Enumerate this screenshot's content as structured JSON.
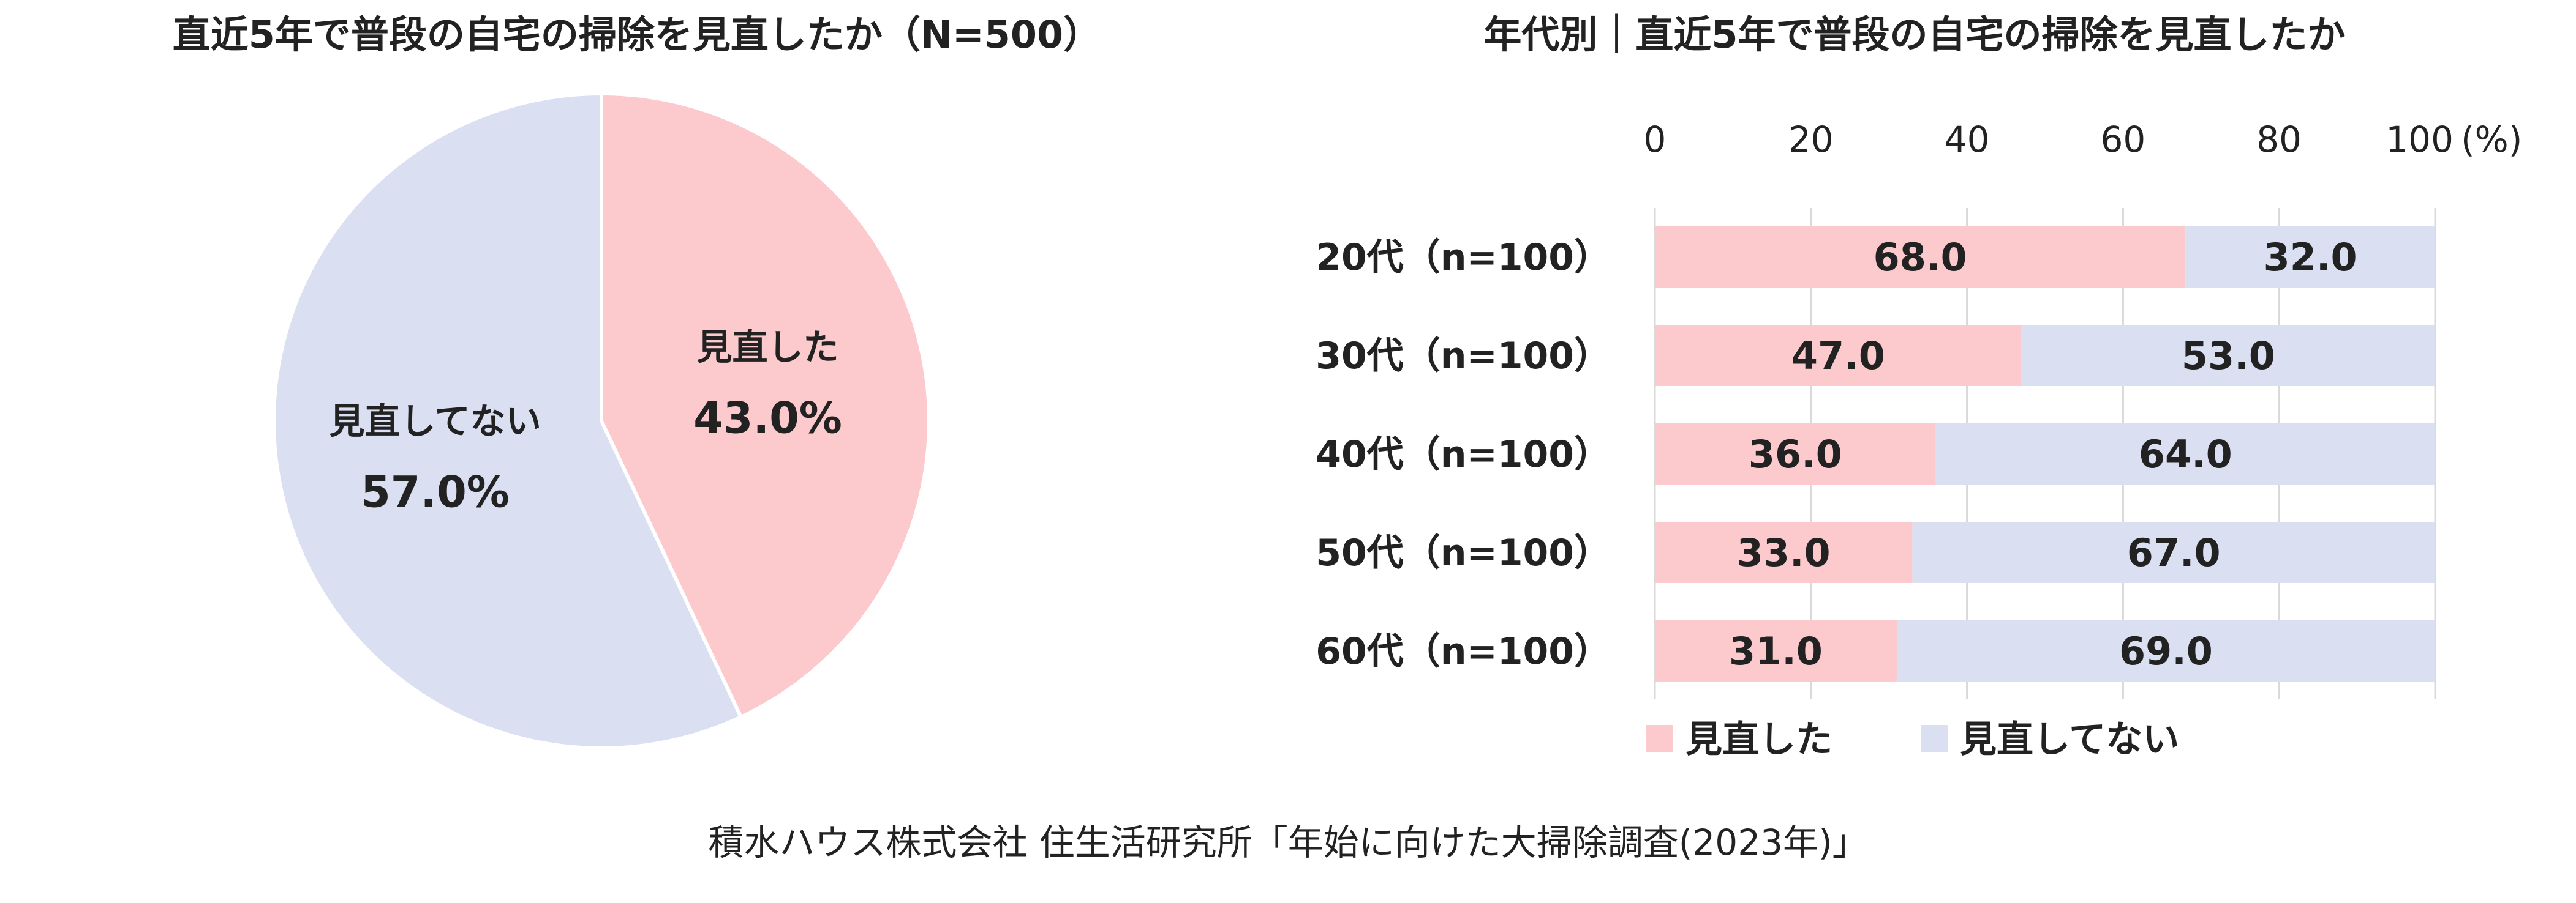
{
  "colors": {
    "revised": "#FCCACC",
    "not_revised": "#DADFF2",
    "grid": "#D9D9D9",
    "text": "#222222"
  },
  "source": "積水ハウス株式会社 住生活研究所「年始に向けた大掃除調査(2023年)」",
  "chart_data": [
    {
      "type": "pie",
      "title": "直近5年で普段の自宅の掃除を見直したか（N=500）",
      "slices": [
        {
          "label": "見直した",
          "value": 43.0,
          "value_label": "43.0%",
          "color": "#FCCACC"
        },
        {
          "label": "見直してない",
          "value": 57.0,
          "value_label": "57.0%",
          "color": "#DADFF2"
        }
      ],
      "start": "12 o'clock, clockwise"
    },
    {
      "type": "bar",
      "orientation": "horizontal",
      "stacked": true,
      "title": "年代別｜直近5年で普段の自宅の掃除を見直したか",
      "categories": [
        "20代（n=100）",
        "30代（n=100）",
        "40代（n=100）",
        "50代（n=100）",
        "60代（n=100）"
      ],
      "series": [
        {
          "name": "見直した",
          "values": [
            68.0,
            47.0,
            36.0,
            33.0,
            31.0
          ],
          "labels": [
            "68.0",
            "47.0",
            "36.0",
            "33.0",
            "31.0"
          ],
          "color": "#FCCACC"
        },
        {
          "name": "見直してない",
          "values": [
            32.0,
            53.0,
            64.0,
            67.0,
            69.0
          ],
          "labels": [
            "32.0",
            "53.0",
            "64.0",
            "67.0",
            "69.0"
          ],
          "color": "#DADFF2"
        }
      ],
      "xlim": [
        0,
        100
      ],
      "xticks": [
        "0",
        "20",
        "40",
        "60",
        "80",
        "100"
      ],
      "x_unit": "(%)",
      "grid": true,
      "legend": "bottom"
    }
  ]
}
